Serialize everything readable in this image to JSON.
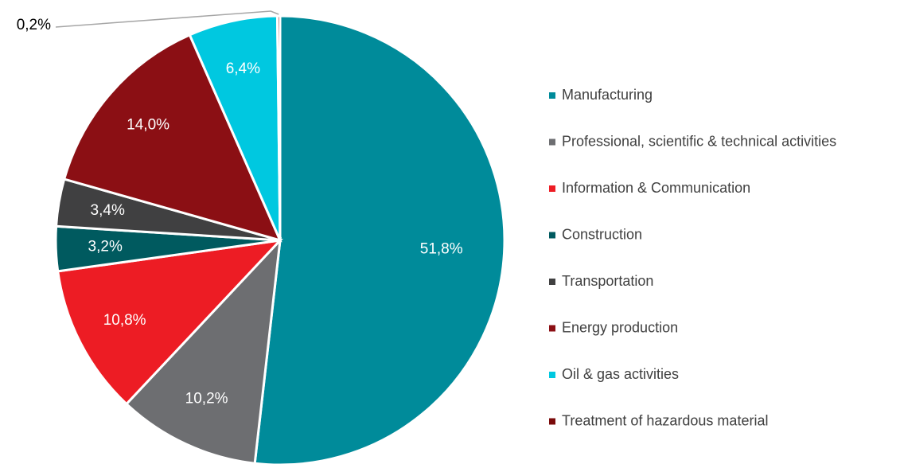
{
  "chart_data": {
    "type": "pie",
    "categories": [
      "Manufacturing",
      "Professional, scientific & technical activities",
      "Information & Communication",
      "Construction",
      "Transportation",
      "Energy production",
      "Oil & gas activities",
      "Treatment of hazardous material"
    ],
    "values": [
      51.8,
      10.2,
      10.8,
      3.2,
      3.4,
      14.0,
      6.4,
      0.2
    ],
    "value_labels": [
      "51,8%",
      "10,2%",
      "10,8%",
      "3,2%",
      "3,4%",
      "14,0%",
      "6,4%",
      "0,2%"
    ],
    "colors": [
      "#008b9a",
      "#6d6e71",
      "#ed1c24",
      "#005a5f",
      "#404041",
      "#8b0f14",
      "#00c8e0",
      "#7a0a0a"
    ],
    "legend": "right"
  }
}
